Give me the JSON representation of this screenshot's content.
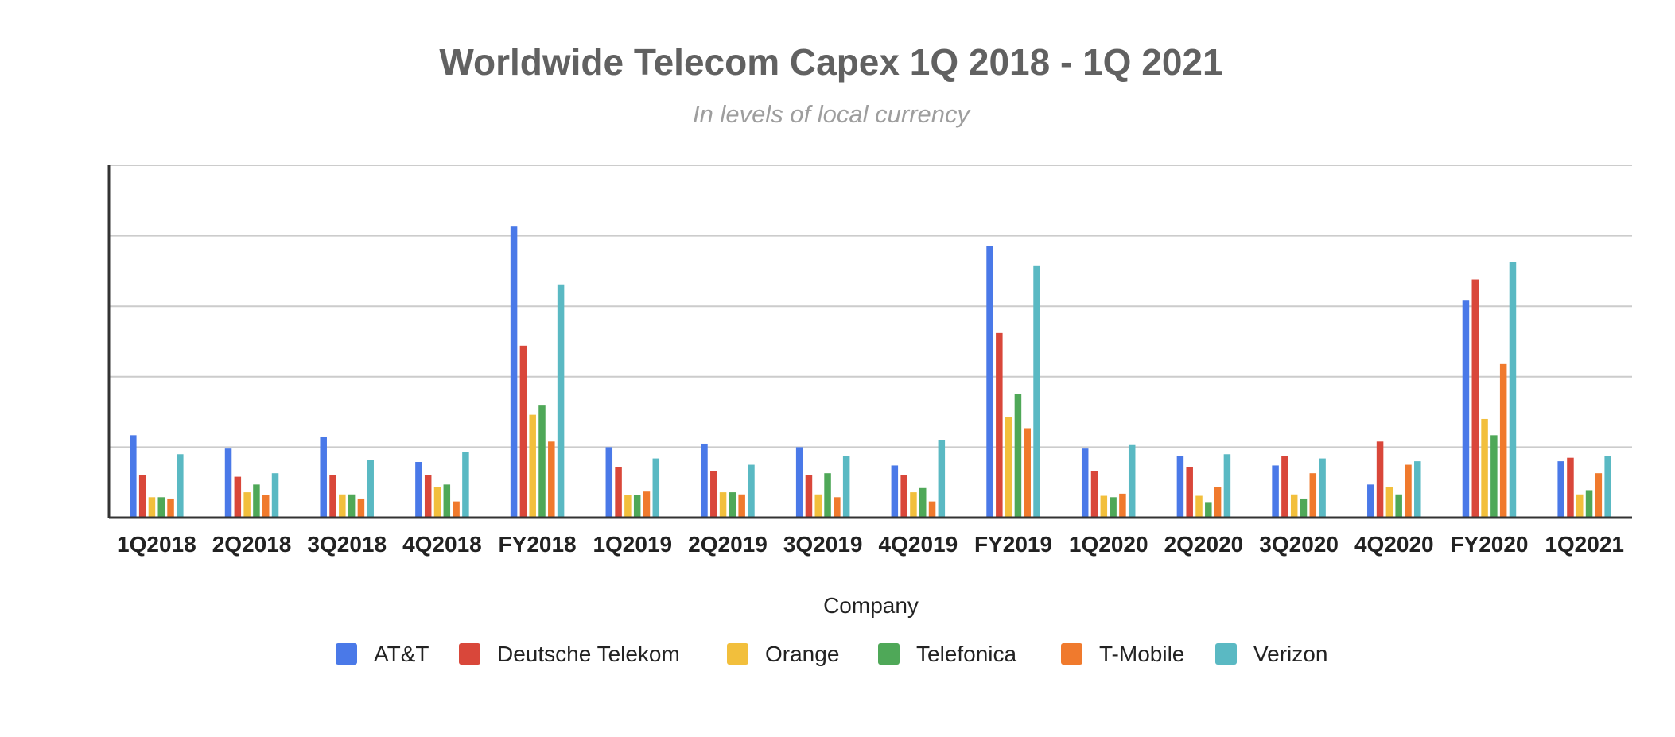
{
  "chart_data": {
    "type": "bar",
    "title": "Worldwide Telecom Capex 1Q 2018 - 1Q 2021",
    "subtitle": "In levels of local currency",
    "xlabel": "Company",
    "ylabel": "",
    "ylim": [
      0,
      5
    ],
    "y_tick_labels_shown": false,
    "grid": true,
    "legend_position": "bottom",
    "categories": [
      "1Q2018",
      "2Q2018",
      "3Q2018",
      "4Q2018",
      "FY2018",
      "1Q2019",
      "2Q2019",
      "3Q2019",
      "4Q2019",
      "FY2019",
      "1Q2020",
      "2Q2020",
      "3Q2020",
      "4Q2020",
      "FY2020",
      "1Q2021"
    ],
    "series": [
      {
        "name": "AT&T",
        "color": "#4a79e8",
        "values": [
          1.17,
          0.98,
          1.14,
          0.79,
          4.14,
          1.0,
          1.05,
          1.0,
          0.74,
          3.86,
          0.98,
          0.87,
          0.74,
          0.47,
          3.09,
          0.8
        ]
      },
      {
        "name": "Deutsche Telekom",
        "color": "#d9473a",
        "values": [
          0.6,
          0.58,
          0.6,
          0.6,
          2.44,
          0.72,
          0.66,
          0.6,
          0.6,
          2.62,
          0.66,
          0.72,
          0.87,
          1.08,
          3.38,
          0.85
        ]
      },
      {
        "name": "Orange",
        "color": "#f2bf3c",
        "values": [
          0.29,
          0.36,
          0.33,
          0.44,
          1.46,
          0.32,
          0.36,
          0.33,
          0.36,
          1.43,
          0.31,
          0.31,
          0.33,
          0.43,
          1.4,
          0.33
        ]
      },
      {
        "name": "Telefonica",
        "color": "#4fa858",
        "values": [
          0.29,
          0.47,
          0.33,
          0.47,
          1.59,
          0.32,
          0.36,
          0.63,
          0.42,
          1.75,
          0.29,
          0.21,
          0.26,
          0.33,
          1.17,
          0.39
        ]
      },
      {
        "name": "T-Mobile",
        "color": "#f07a2d",
        "values": [
          0.26,
          0.32,
          0.26,
          0.23,
          1.08,
          0.37,
          0.33,
          0.29,
          0.23,
          1.27,
          0.34,
          0.44,
          0.63,
          0.75,
          2.18,
          0.63
        ]
      },
      {
        "name": "Verizon",
        "color": "#5ab9c3",
        "values": [
          0.9,
          0.63,
          0.82,
          0.93,
          3.31,
          0.84,
          0.75,
          0.87,
          1.1,
          3.58,
          1.03,
          0.9,
          0.84,
          0.8,
          3.63,
          0.87
        ]
      }
    ]
  }
}
